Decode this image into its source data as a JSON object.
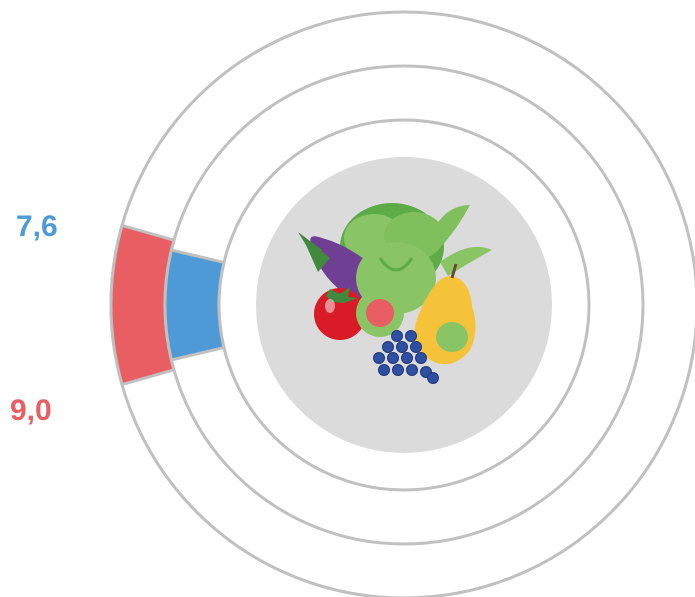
{
  "chart_data": {
    "type": "radial-bar",
    "decimal_separator": ",",
    "series": [
      {
        "value_label": "7,6",
        "value": 7.6,
        "color": "#4e9ad6"
      },
      {
        "value_label": "9,0",
        "value": 9.0,
        "color": "#e85e62"
      }
    ],
    "ring_color": "#c0c0c0",
    "center_circle_color": "#dcdbdc",
    "center_icon": "fruits-and-vegetables-icon"
  }
}
